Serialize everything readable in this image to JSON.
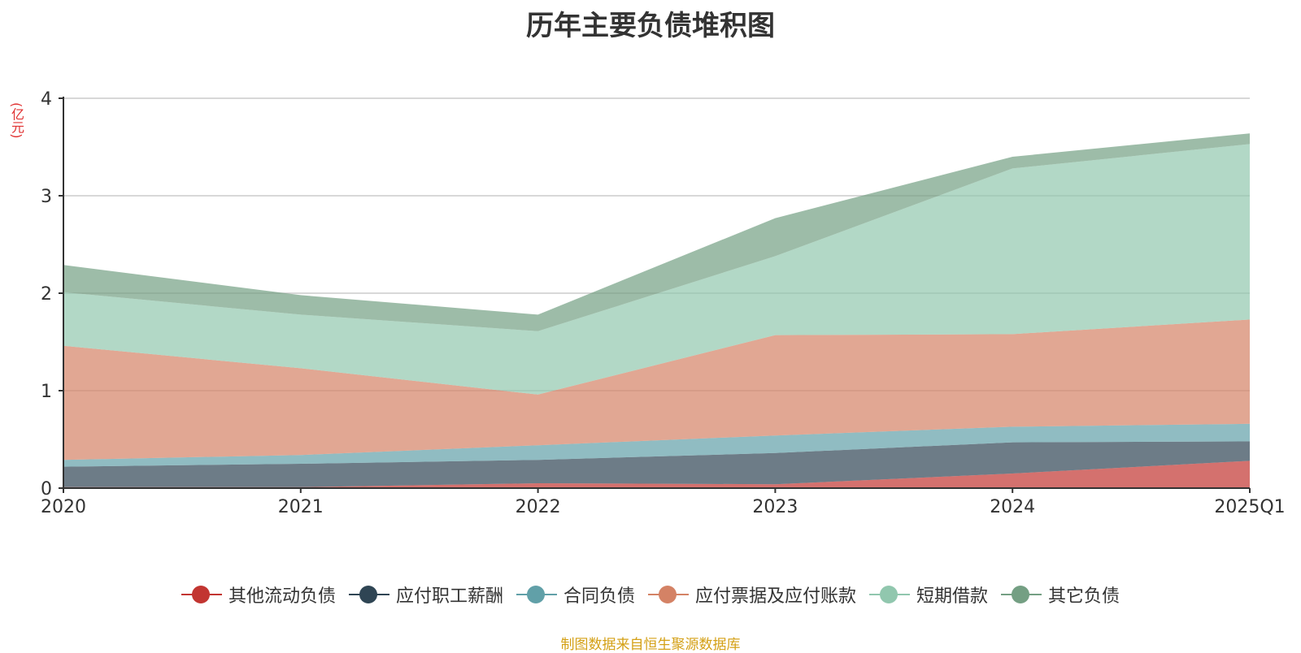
{
  "title": "历年主要负债堆积图",
  "unit": "(亿元)",
  "source_note": "制图数据来自恒生聚源数据库",
  "chart_data": {
    "type": "area",
    "stacked": true,
    "title": "历年主要负债堆积图",
    "ylabel": "(亿元)",
    "xlabel": "",
    "categories": [
      "2020",
      "2021",
      "2022",
      "2023",
      "2024",
      "2025Q1"
    ],
    "ylim": [
      0,
      4
    ],
    "yticks": [
      0,
      1,
      2,
      3,
      4
    ],
    "grid": true,
    "legend_position": "bottom",
    "series": [
      {
        "name": "其他流动负债",
        "color": "#c23531",
        "values": [
          0.01,
          0.01,
          0.05,
          0.04,
          0.15,
          0.28
        ]
      },
      {
        "name": "应付职工薪酬",
        "color": "#2f4554",
        "values": [
          0.21,
          0.24,
          0.24,
          0.32,
          0.32,
          0.2
        ]
      },
      {
        "name": "合同负债",
        "color": "#61a0a8",
        "values": [
          0.07,
          0.09,
          0.15,
          0.18,
          0.16,
          0.18
        ]
      },
      {
        "name": "应付票据及应付账款",
        "color": "#d48265",
        "values": [
          1.17,
          0.89,
          0.52,
          1.03,
          0.95,
          1.07
        ]
      },
      {
        "name": "短期借款",
        "color": "#91c7ae",
        "values": [
          0.55,
          0.55,
          0.65,
          0.81,
          1.7,
          1.8
        ]
      },
      {
        "name": "其它负债",
        "color": "#749f83",
        "values": [
          0.28,
          0.2,
          0.17,
          0.39,
          0.12,
          0.11
        ]
      }
    ]
  }
}
